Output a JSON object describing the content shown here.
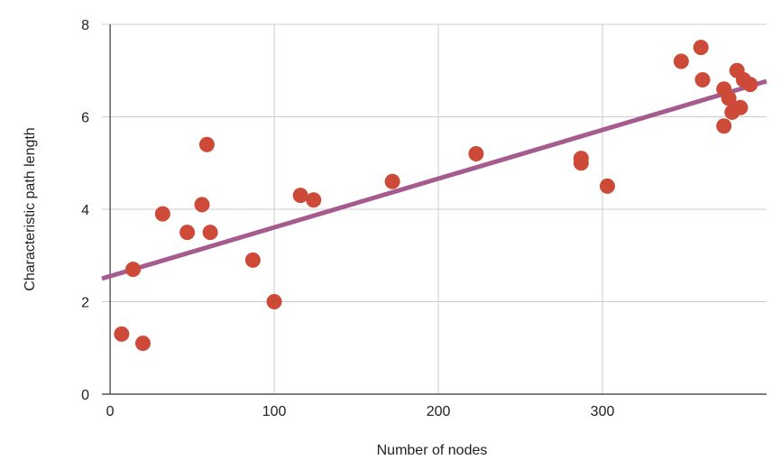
{
  "chart_data": {
    "type": "scatter",
    "title": "",
    "xlabel": "Number of nodes",
    "ylabel": "Characteristic path length",
    "xlim": [
      -5,
      400
    ],
    "ylim": [
      0,
      8
    ],
    "x_ticks": [
      0,
      100,
      200,
      300
    ],
    "y_ticks": [
      0,
      2,
      4,
      6,
      8
    ],
    "grid": true,
    "legend": "none",
    "colors": {
      "points": "#cc4a37",
      "trendline": "#a55b8e",
      "grid": "#cccccc",
      "axis": "#333333"
    },
    "series": [
      {
        "points": [
          [
            7,
            1.3
          ],
          [
            14,
            2.7
          ],
          [
            20,
            1.1
          ],
          [
            32,
            3.9
          ],
          [
            47,
            3.5
          ],
          [
            56,
            4.1
          ],
          [
            59,
            5.4
          ],
          [
            61,
            3.5
          ],
          [
            87,
            2.9
          ],
          [
            100,
            2.0
          ],
          [
            116,
            4.3
          ],
          [
            124,
            4.2
          ],
          [
            172,
            4.6
          ],
          [
            223,
            5.2
          ],
          [
            287,
            5.1
          ],
          [
            287,
            5.0
          ],
          [
            303,
            4.5
          ],
          [
            348,
            7.2
          ],
          [
            360,
            7.5
          ],
          [
            361,
            6.8
          ],
          [
            374,
            6.6
          ],
          [
            374,
            5.8
          ],
          [
            377,
            6.4
          ],
          [
            379,
            6.1
          ],
          [
            382,
            7.0
          ],
          [
            384,
            6.2
          ],
          [
            386,
            6.8
          ],
          [
            390,
            6.7
          ]
        ]
      }
    ],
    "trendline": {
      "type": "linear",
      "points": [
        [
          -5,
          2.5
        ],
        [
          400,
          6.77
        ]
      ]
    }
  }
}
